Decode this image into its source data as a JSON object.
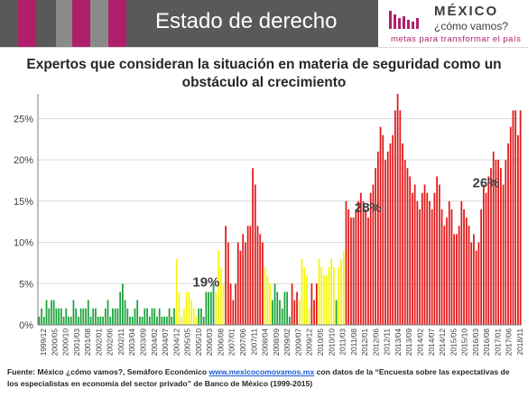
{
  "header": {
    "title": "Estado de derecho",
    "stripe_colors": [
      "#b0206a",
      "#8a8a8a",
      "#b0206a",
      "#8a8a8a",
      "#b0206a"
    ]
  },
  "logo": {
    "name": "MÉXICO",
    "subtitle": "¿cómo vamos?",
    "tagline": "metas para transformar el país",
    "brand_color": "#b0206a"
  },
  "chart_data": {
    "type": "bar",
    "title": "Expertos que consideran la situación en materia de seguridad  como un obstáculo al crecimiento",
    "ylim": [
      0,
      28
    ],
    "yticks": [
      0,
      5,
      10,
      15,
      20,
      25
    ],
    "ytick_labels": [
      "0%",
      "5%",
      "10%",
      "15%",
      "20%",
      "25%"
    ],
    "xtick_labels": [
      "1999/12",
      "2000/05",
      "2000/10",
      "2001/03",
      "2001/08",
      "2002/01",
      "2002/06",
      "2002/11",
      "2003/04",
      "2003/09",
      "2004/02",
      "2004/07",
      "2004/12",
      "2005/05",
      "2005/10",
      "2006/03",
      "2006/08",
      "2007/01",
      "2007/06",
      "2007/11",
      "2008/04",
      "2008/09",
      "2009/02",
      "2009/07",
      "2009/12",
      "2010/05",
      "2010/10",
      "2011/03",
      "2011/08",
      "2012/01",
      "2012/06",
      "2012/11",
      "2013/04",
      "2013/09",
      "2014/02",
      "2014/07",
      "2014/12",
      "2015/05",
      "2015/10",
      "2016/03",
      "2016/08",
      "2017/01",
      "2017/06",
      "2018/11"
    ],
    "annotations": [
      {
        "label": "19%",
        "index": 68
      },
      {
        "label": "28%",
        "index": 134
      },
      {
        "label": "26%",
        "index": 182
      }
    ],
    "grid": true,
    "colors": {
      "green": "#1aa23a",
      "yellow": "#f5f50a",
      "red": "#e01818"
    },
    "segments": [
      {
        "color": "green",
        "values": [
          1,
          2,
          1,
          3,
          2,
          3,
          3,
          2,
          2,
          2,
          1,
          2,
          1,
          1,
          3,
          2,
          1,
          2,
          2,
          2,
          3,
          1,
          2,
          2,
          1,
          1,
          1,
          2,
          3,
          1,
          2,
          2,
          2,
          4,
          5,
          3,
          2,
          1,
          1,
          2,
          3,
          1,
          1,
          2,
          2,
          1,
          2,
          2,
          1,
          2,
          1,
          1,
          1,
          2,
          1,
          2
        ]
      },
      {
        "color": "yellow",
        "values": [
          8,
          4,
          1,
          2,
          4,
          4,
          3,
          2,
          1
        ]
      },
      {
        "color": "green",
        "values": [
          2,
          2,
          1,
          4,
          4,
          4,
          5
        ]
      },
      {
        "color": "yellow",
        "values": [
          4,
          9,
          7,
          5
        ]
      },
      {
        "color": "red",
        "values": [
          12,
          10,
          5,
          3,
          5,
          10,
          9,
          11,
          10,
          12,
          12,
          19,
          17,
          12,
          11,
          10
        ]
      },
      {
        "color": "yellow",
        "values": [
          7,
          6,
          5
        ]
      },
      {
        "color": "green",
        "values": [
          3,
          5,
          4,
          3,
          2,
          4,
          4,
          1
        ]
      },
      {
        "color": "red",
        "values": [
          5,
          3,
          4
        ]
      },
      {
        "color": "yellow",
        "values": [
          3,
          8,
          7,
          6,
          2
        ]
      },
      {
        "color": "red",
        "values": [
          5,
          3,
          5
        ]
      },
      {
        "color": "yellow",
        "values": [
          8,
          7,
          6,
          6,
          7,
          8,
          7
        ]
      },
      {
        "color": "green",
        "values": [
          3
        ]
      },
      {
        "color": "yellow",
        "values": [
          7,
          8,
          9
        ]
      },
      {
        "color": "red",
        "values": [
          15,
          14,
          13,
          13,
          14,
          15,
          16,
          15,
          14,
          13,
          16,
          17,
          19,
          21,
          24,
          23,
          20,
          21,
          22,
          23,
          26,
          28,
          26,
          22,
          20,
          19,
          18,
          16,
          17,
          15,
          14,
          16,
          17,
          16,
          15,
          14,
          16,
          18,
          17,
          14,
          12,
          13,
          15,
          14,
          11,
          11,
          12,
          15,
          14,
          13,
          12,
          10,
          11,
          9,
          10,
          14,
          17,
          16,
          18,
          19,
          21,
          20,
          20,
          19,
          17,
          20,
          22,
          24,
          26,
          26,
          23,
          26
        ]
      }
    ]
  },
  "source": {
    "prefix": "Fuente: México ¿cómo vamos?, Semáforo Económico ",
    "link": "www.mexicocomovamos.mx",
    "suffix": " con datos de la “Encuesta sobre las expectativas de los especialistas en economía del sector privado” de Banco de México (1999-2015)"
  }
}
